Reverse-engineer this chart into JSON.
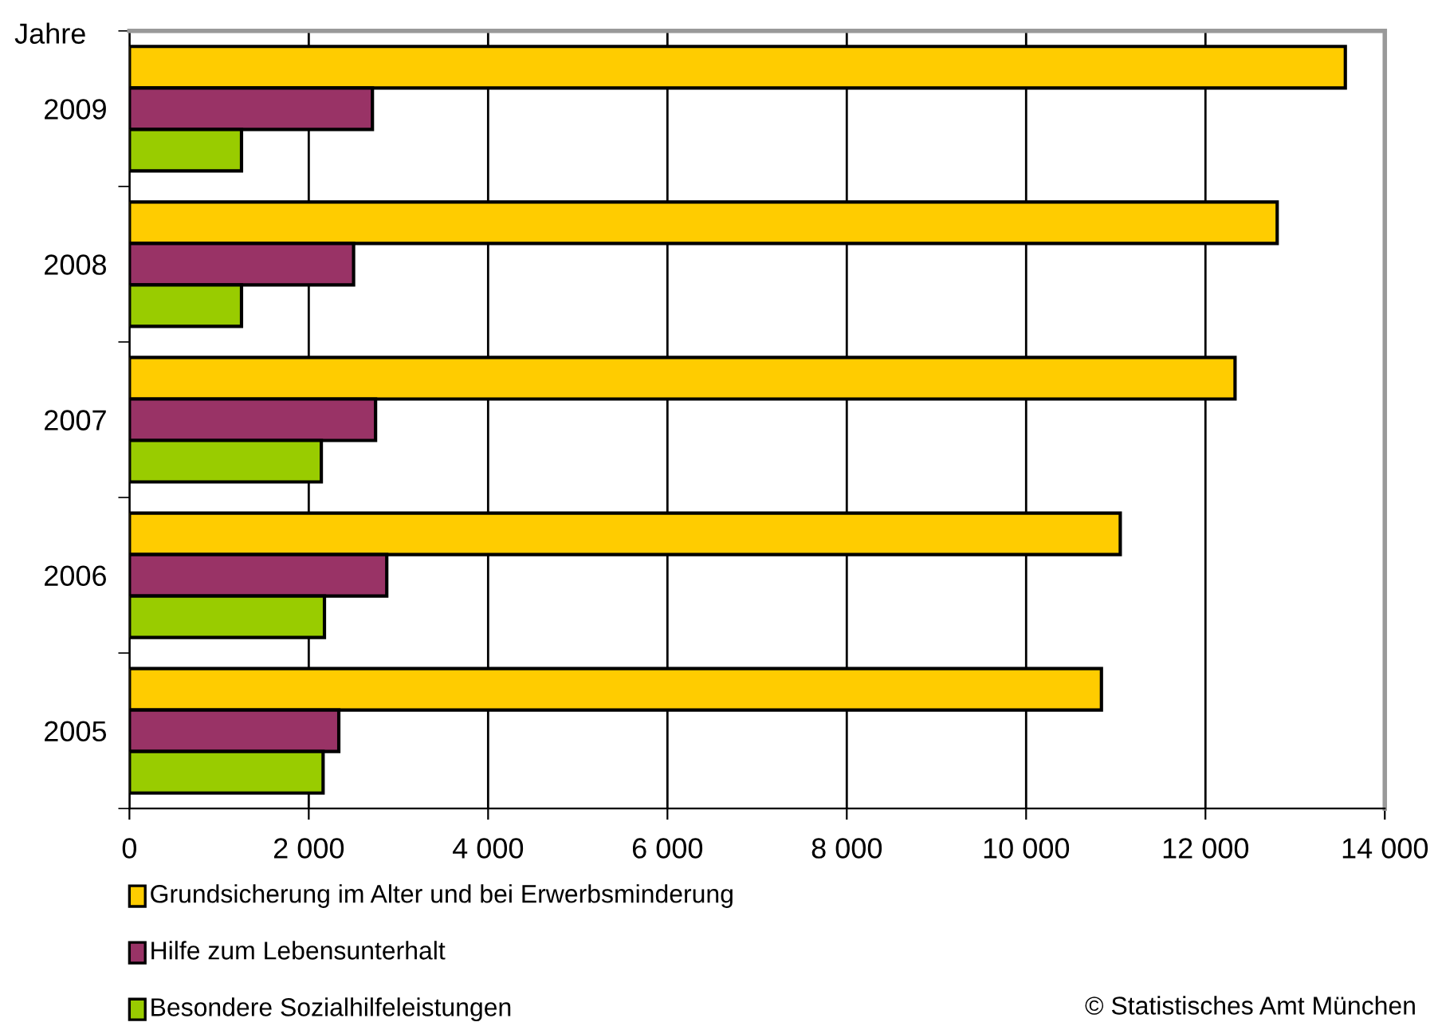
{
  "chart_data": {
    "type": "bar",
    "orientation": "horizontal",
    "ylabel": "Jahre",
    "categories": [
      "2009",
      "2008",
      "2007",
      "2006",
      "2005"
    ],
    "series": [
      {
        "name": "Grundsicherung im Alter und bei Erwerbsminderung",
        "color": "#ffcc00",
        "values": [
          13560,
          12800,
          12330,
          11050,
          10840
        ]
      },
      {
        "name": "Hilfe zum Lebensunterhalt",
        "color": "#993366",
        "values": [
          2710,
          2500,
          2745,
          2870,
          2335
        ]
      },
      {
        "name": "Besondere Sozialhilfeleistungen",
        "color": "#99cc00",
        "values": [
          1250,
          1250,
          2140,
          2175,
          2160
        ]
      }
    ],
    "xlim": [
      0,
      14000
    ],
    "xticks": [
      {
        "value": 0,
        "label": "0"
      },
      {
        "value": 2000,
        "label": "2 000"
      },
      {
        "value": 4000,
        "label": "4 000"
      },
      {
        "value": 6000,
        "label": "6 000"
      },
      {
        "value": 8000,
        "label": "8 000"
      },
      {
        "value": 10000,
        "label": "10 000"
      },
      {
        "value": 12000,
        "label": "12 000"
      },
      {
        "value": 14000,
        "label": "14 000"
      }
    ],
    "grid": "x",
    "legend": "bottom left",
    "annotations": [
      "© Statistisches Amt München"
    ]
  }
}
